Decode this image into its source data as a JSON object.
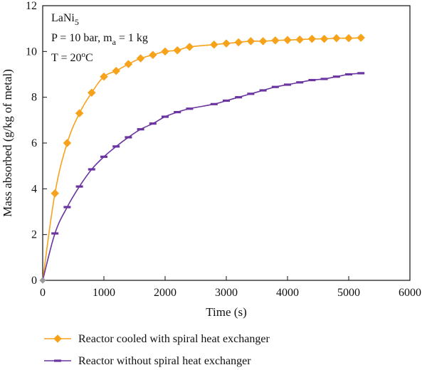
{
  "chart_data": {
    "type": "line",
    "xlabel": "Time (s)",
    "ylabel": "Mass absorbed (g/kg of metal)",
    "xlim": [
      0,
      6000
    ],
    "ylim": [
      0,
      12
    ],
    "xticks": [
      0,
      1000,
      2000,
      3000,
      4000,
      5000,
      6000
    ],
    "yticks": [
      0,
      2,
      4,
      6,
      8,
      10,
      12
    ],
    "grid": false,
    "legend_position": "bottom-left-outside",
    "annotations": {
      "material": "LaNi",
      "material_sub": "5",
      "pressure": "P = 10 bar, m",
      "pressure_sub": "a",
      "pressure_tail": " = 1 kg",
      "temperature": "T = 20",
      "temperature_sup": "o",
      "temperature_tail": "C"
    },
    "series": [
      {
        "name": "Reactor cooled with spiral heat exchanger",
        "color": "#f7a21b",
        "marker": "diamond",
        "x": [
          0,
          200,
          400,
          600,
          800,
          1000,
          1200,
          1400,
          1600,
          1800,
          2000,
          2200,
          2400,
          2800,
          3000,
          3200,
          3400,
          3600,
          3800,
          4000,
          4200,
          4400,
          4600,
          4800,
          5000,
          5200
        ],
        "y": [
          0,
          3.8,
          6.0,
          7.3,
          8.2,
          8.9,
          9.15,
          9.45,
          9.7,
          9.85,
          10.0,
          10.05,
          10.2,
          10.3,
          10.35,
          10.4,
          10.45,
          10.45,
          10.48,
          10.5,
          10.52,
          10.55,
          10.55,
          10.58,
          10.58,
          10.6
        ]
      },
      {
        "name": "Reactor without spiral heat exchanger",
        "color": "#6a35a0",
        "marker": "dash",
        "x": [
          0,
          200,
          400,
          600,
          800,
          1000,
          1200,
          1400,
          1600,
          1800,
          2000,
          2200,
          2400,
          2800,
          3000,
          3200,
          3400,
          3600,
          3800,
          4000,
          4200,
          4400,
          4600,
          4800,
          5000,
          5200
        ],
        "y": [
          0,
          2.05,
          3.2,
          4.1,
          4.85,
          5.4,
          5.85,
          6.25,
          6.6,
          6.85,
          7.15,
          7.35,
          7.5,
          7.7,
          7.85,
          8.0,
          8.15,
          8.3,
          8.45,
          8.55,
          8.65,
          8.75,
          8.8,
          8.9,
          9.0,
          9.05
        ]
      }
    ]
  }
}
